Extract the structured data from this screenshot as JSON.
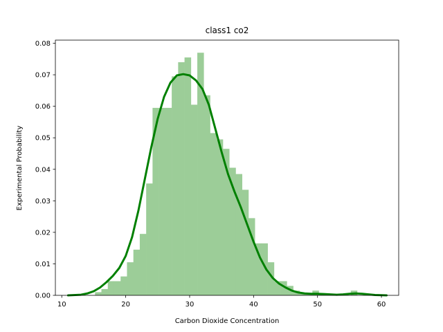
{
  "chart_data": {
    "type": "bar",
    "title": "class1 co2",
    "xlabel": "Carbon Dioxide Concentration",
    "ylabel": "Experimental Probability",
    "xlim": [
      9.0,
      62.7
    ],
    "ylim": [
      0,
      0.081
    ],
    "xticks": [
      10,
      20,
      30,
      40,
      50,
      60
    ],
    "yticks": [
      0.0,
      0.01,
      0.02,
      0.03,
      0.04,
      0.05,
      0.06,
      0.07,
      0.08
    ],
    "ytick_labels": [
      "0.00",
      "0.01",
      "0.02",
      "0.03",
      "0.04",
      "0.05",
      "0.06",
      "0.07",
      "0.08"
    ],
    "grid": false,
    "histogram": {
      "color": "#9ccd98",
      "bin_edges": [
        15.2,
        16.2,
        17.2,
        18.2,
        19.2,
        20.2,
        21.2,
        22.2,
        23.2,
        24.2,
        25.2,
        26.2,
        27.2,
        28.2,
        29.2,
        30.2,
        31.2,
        32.2,
        33.2,
        34.2,
        35.2,
        36.2,
        37.2,
        38.2,
        39.2,
        40.2,
        41.2,
        42.2,
        43.2,
        44.2,
        45.2,
        46.2,
        47.2,
        48.2,
        49.2,
        50.2,
        51.2,
        52.2,
        53.2,
        54.2,
        55.2,
        56.2
      ],
      "densities": [
        0.001,
        0.002,
        0.0045,
        0.0045,
        0.006,
        0.0105,
        0.0145,
        0.0195,
        0.0355,
        0.0595,
        0.0595,
        0.0595,
        0.0695,
        0.074,
        0.0755,
        0.0605,
        0.077,
        0.0635,
        0.0515,
        0.0495,
        0.0465,
        0.0405,
        0.0385,
        0.0335,
        0.0245,
        0.0165,
        0.0165,
        0.0105,
        0.0045,
        0.0045,
        0.003,
        0.0015,
        0.0005,
        0.0005,
        0.0015,
        0.0005,
        0.0,
        0.0,
        0.0005,
        0.0,
        0.0015
      ]
    },
    "kde": {
      "color": "#008000",
      "x": [
        11.0,
        13.0,
        14.0,
        15.0,
        16.0,
        17.0,
        18.0,
        19.0,
        20.0,
        21.0,
        22.0,
        23.0,
        24.0,
        25.0,
        26.0,
        27.0,
        28.0,
        29.0,
        30.0,
        31.0,
        32.0,
        33.0,
        34.0,
        35.0,
        36.0,
        37.0,
        38.0,
        39.0,
        40.0,
        41.0,
        42.0,
        43.0,
        44.0,
        45.0,
        46.0,
        47.0,
        48.0,
        49.0,
        50.0,
        51.0,
        52.0,
        53.0,
        54.0,
        55.0,
        56.0,
        57.0,
        58.0,
        59.0,
        60.8
      ],
      "y": [
        0.0,
        0.0002,
        0.0006,
        0.0013,
        0.0025,
        0.0042,
        0.0062,
        0.0087,
        0.0125,
        0.0185,
        0.027,
        0.037,
        0.047,
        0.056,
        0.063,
        0.0675,
        0.0698,
        0.0702,
        0.0698,
        0.0682,
        0.0655,
        0.0605,
        0.053,
        0.0455,
        0.0385,
        0.033,
        0.028,
        0.0225,
        0.017,
        0.012,
        0.0082,
        0.0055,
        0.0037,
        0.0025,
        0.0015,
        0.0009,
        0.0006,
        0.0005,
        0.0005,
        0.0004,
        0.0003,
        0.0002,
        0.0003,
        0.0005,
        0.0006,
        0.0005,
        0.0003,
        0.0001,
        0.0
      ]
    }
  }
}
